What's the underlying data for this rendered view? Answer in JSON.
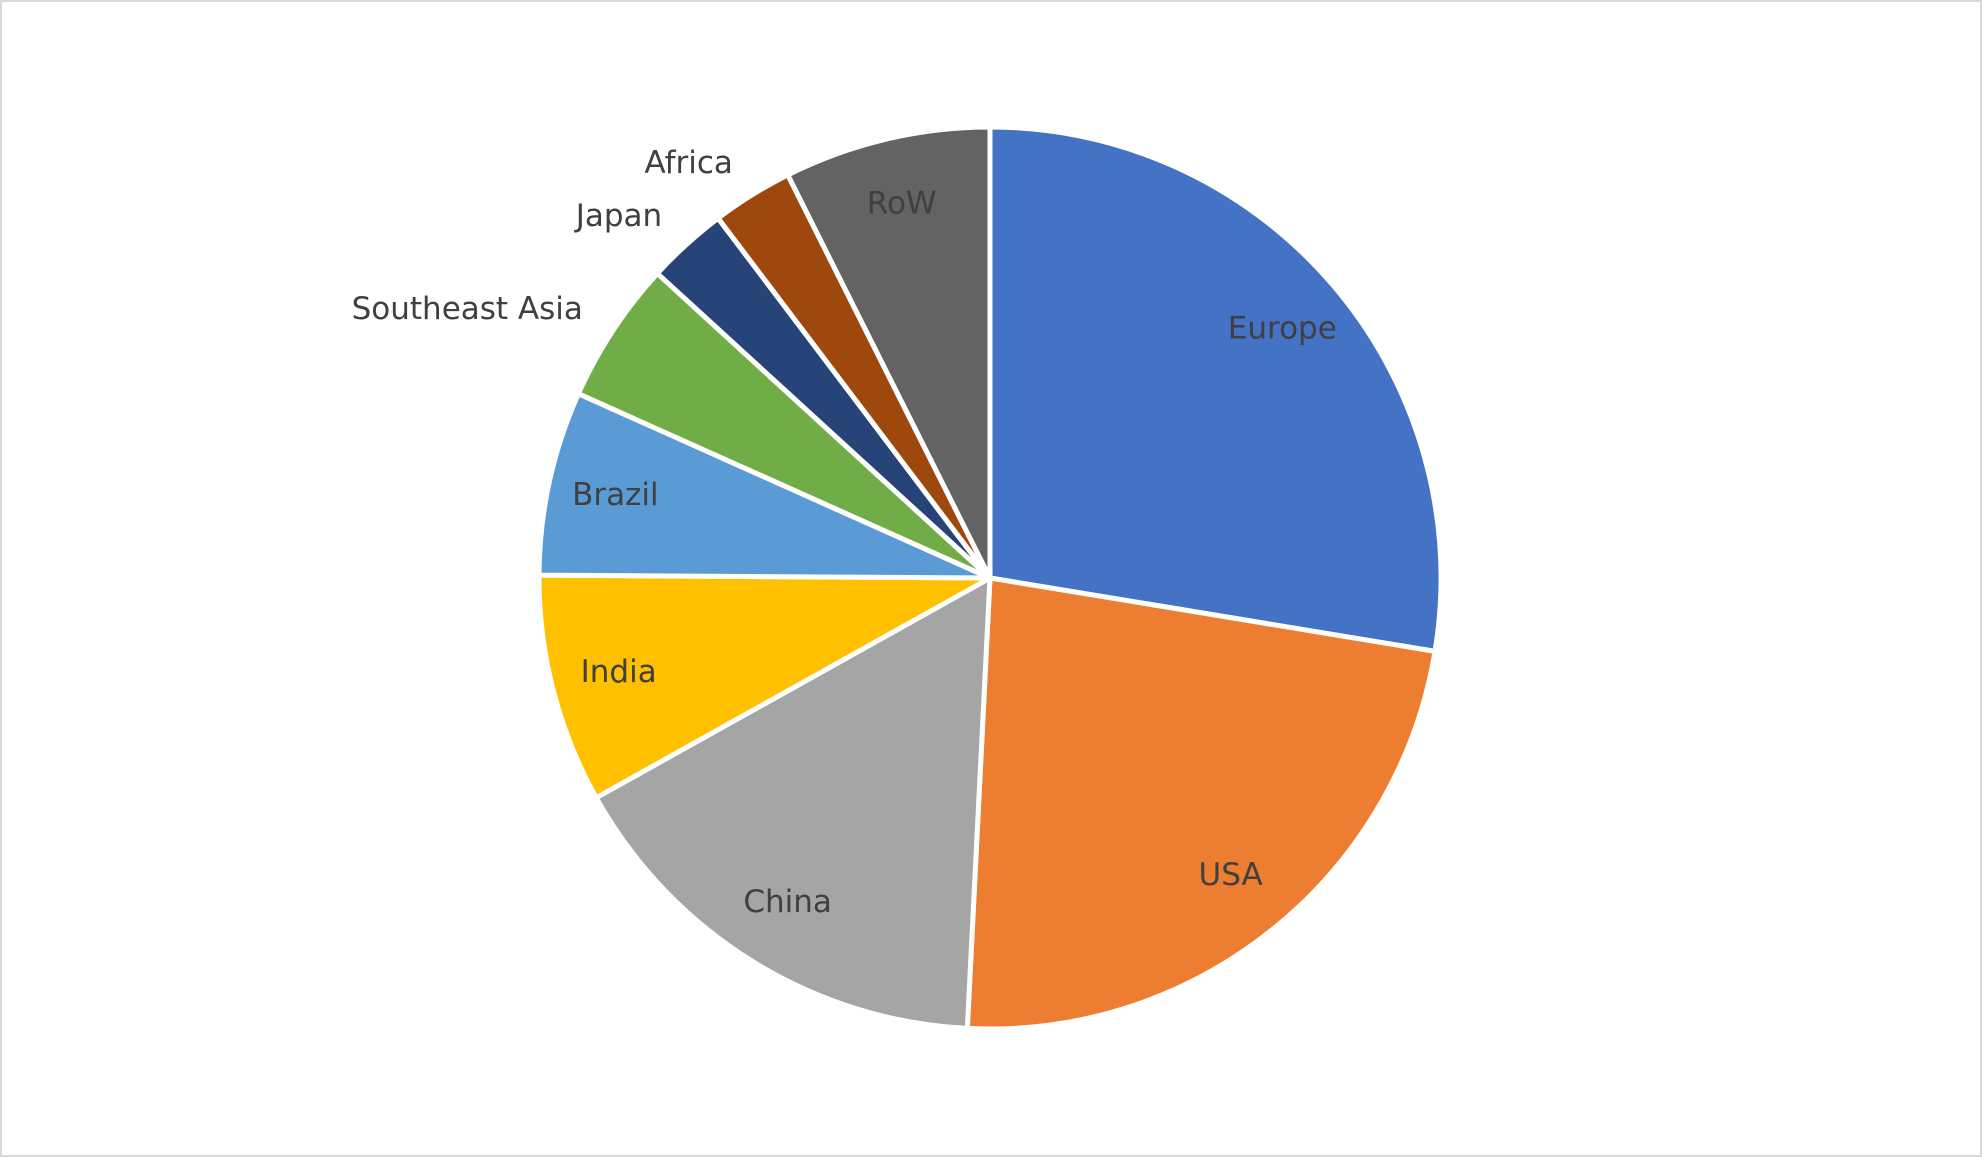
{
  "chart_data": {
    "type": "pie",
    "categories": [
      "Europe",
      "USA",
      "China",
      "India",
      "Brazil",
      "Southeast Asia",
      "Japan",
      "Africa",
      "RoW"
    ],
    "values": [
      27.6,
      23.2,
      16.1,
      8.2,
      6.6,
      5.1,
      2.9,
      2.9,
      7.4
    ],
    "colors": [
      "#4472c4",
      "#ed7d31",
      "#a5a5a5",
      "#ffc000",
      "#5b9bd5",
      "#70ad47",
      "#264478",
      "#9e480e",
      "#636363"
    ]
  }
}
